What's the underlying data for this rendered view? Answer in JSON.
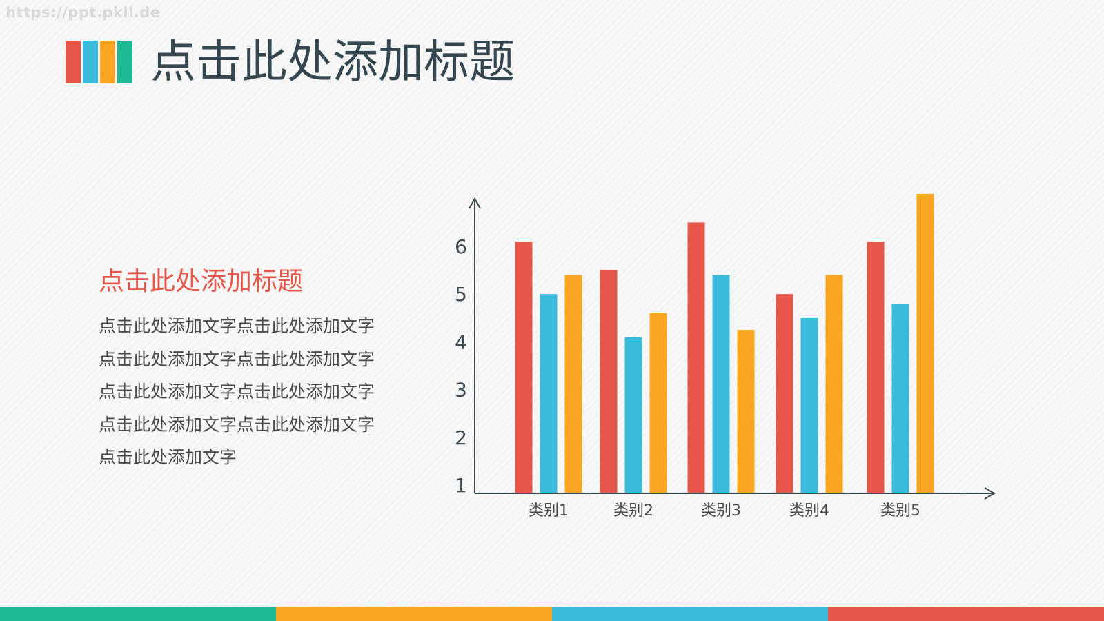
{
  "watermark": "https://ppt.pkll.de",
  "colors": {
    "red": "#e5574a",
    "blue": "#3bbbdc",
    "orange": "#f7a522",
    "teal": "#1fb894",
    "title": "#34464f",
    "text": "#4a4a4a",
    "axis": "#3e4a52"
  },
  "header": {
    "title": "点击此处添加标题",
    "logo_bar_colors": [
      "#e5574a",
      "#3bbbdc",
      "#f7a522",
      "#1fb894"
    ]
  },
  "content": {
    "subtitle": "点击此处添加标题",
    "lines": [
      "点击此处添加文字点击此处添加文字",
      "点击此处添加文字点击此处添加文字",
      "点击此处添加文字点击此处添加文字",
      "点击此处添加文字点击此处添加文字",
      "点击此处添加文字"
    ]
  },
  "chart_data": {
    "type": "bar",
    "categories": [
      "类别1",
      "类别2",
      "类别3",
      "类别4",
      "类别5"
    ],
    "series": [
      {
        "values": [
          6.1,
          5.5,
          6.5,
          5.0,
          6.1
        ],
        "color": "#e5574a"
      },
      {
        "values": [
          5.0,
          4.1,
          5.4,
          4.5,
          4.8
        ],
        "color": "#3bbbdc"
      },
      {
        "values": [
          5.4,
          4.6,
          4.25,
          5.4,
          7.1
        ],
        "color": "#f7a522"
      }
    ],
    "y_ticks": [
      1,
      2,
      3,
      4,
      5,
      6
    ],
    "ylim": [
      0.8,
      7.0
    ],
    "grid": false,
    "legend": "none",
    "axis_arrows": true
  },
  "bottom_strip": [
    "#1fb894",
    "#f7a522",
    "#3bbbdc",
    "#e5574a"
  ]
}
